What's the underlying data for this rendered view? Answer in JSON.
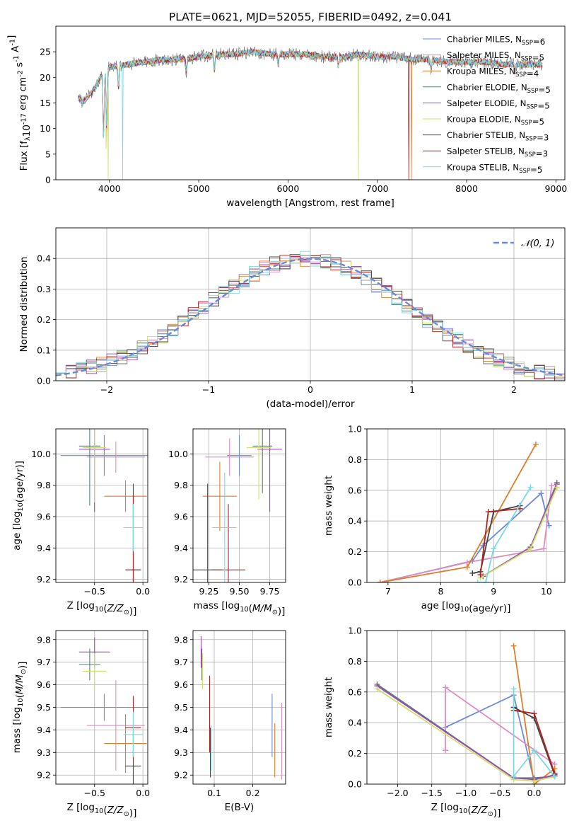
{
  "figure_title": "PLATE=0621, MJD=52055, FIBERID=0492, z=0.041",
  "colors": [
    "#6a8ad8",
    "#e08cc0",
    "#e07d2a",
    "#5b7f7a",
    "#9a4db3",
    "#cfe06a",
    "#4a4a4a",
    "#b22222",
    "#7fd8e0"
  ],
  "legend": [
    "Chabrier MILES, N$_{SSP}$=6",
    "Salpeter MILES, N$_{SSP}$=5",
    "Kroupa MILES, N$_{SSP}$=4",
    "Chabrier ELODIE, N$_{SSP}$=5",
    "Salpeter ELODIE, N$_{SSP}$=5",
    "Kroupa ELODIE, N$_{SSP}$=5",
    "Chabrier STELIB, N$_{SSP}$=3",
    "Salpeter STELIB, N$_{SSP}$=3",
    "Kroupa STELIB, N$_{SSP}$=5"
  ],
  "chart_data": [
    {
      "id": "spectrum",
      "type": "line",
      "xlabel": "wavelength [Angstrom, rest frame]",
      "ylabel": "Flux [f$_\\lambda$10$^{-17}$ erg cm$^{-2}$ s$^{-1}$ A$^{-1}$]",
      "xlim": [
        3400,
        9100
      ],
      "ylim": [
        0,
        30
      ],
      "xticks": [
        4000,
        5000,
        6000,
        7000,
        8000,
        9000
      ],
      "yticks": [
        0,
        5,
        10,
        15,
        20,
        25
      ],
      "grid": false,
      "legend_position": "upper right",
      "continuum": {
        "x": [
          3650,
          3700,
          3800,
          3900,
          4000,
          4200,
          4400,
          4600,
          4800,
          5000,
          5200,
          5400,
          5600,
          5800,
          6000,
          6200,
          6400,
          6600,
          6800,
          7000,
          7200,
          7400,
          7600,
          7800,
          8000,
          8200,
          8400,
          8600,
          8850
        ],
        "y": [
          16,
          15,
          17,
          20,
          22,
          22.5,
          23,
          23.5,
          23.5,
          24,
          24.5,
          24.5,
          25,
          24.5,
          24.5,
          24.5,
          24,
          24,
          24.5,
          24,
          24,
          23.5,
          23.5,
          23,
          23,
          23,
          22.5,
          22.5,
          22.5
        ]
      },
      "dips": [
        [
          3934,
          8
        ],
        [
          3969,
          10
        ],
        [
          4102,
          18
        ],
        [
          4861,
          21
        ],
        [
          5175,
          21
        ],
        [
          5890,
          22
        ],
        [
          6563,
          22
        ],
        [
          7600,
          21
        ],
        [
          8542,
          21
        ]
      ],
      "spikes": [
        {
          "x": 3985,
          "y": 0,
          "series": 5
        },
        {
          "x": 4150,
          "y": 0,
          "series": 8
        },
        {
          "x": 3960,
          "y": 6,
          "series": 5
        },
        {
          "x": 6790,
          "y": 0,
          "series": 5
        },
        {
          "x": 7380,
          "y": 0,
          "series": 2
        },
        {
          "x": 7350,
          "y": 0,
          "series": 7
        }
      ]
    },
    {
      "id": "residuals",
      "type": "line",
      "xlabel": "(data-model)/error",
      "ylabel": "Normed distribution",
      "xlim": [
        -2.5,
        2.5
      ],
      "ylim": [
        0,
        0.5
      ],
      "xticks": [
        -2,
        -1,
        0,
        1,
        2
      ],
      "yticks": [
        0.0,
        0.1,
        0.2,
        0.3,
        0.4
      ],
      "grid": true,
      "legend_position": "upper right",
      "gaussian_label": "$\\mathcal{N}(0,1)$",
      "bin_width": 0.1
    },
    {
      "id": "age_vs_Z",
      "type": "scatter",
      "xlabel": "Z [log$_{10}$($Z/Z_\\odot$)]",
      "ylabel": "age  [log$_{10}$($age/yr$)]",
      "xlim": [
        -0.9,
        0.05
      ],
      "ylim": [
        9.18,
        10.16
      ],
      "xticks": [
        -0.5,
        0.0
      ],
      "yticks": [
        9.2,
        9.4,
        9.6,
        9.8,
        10.0
      ],
      "grid": true,
      "points": [
        {
          "s": 0,
          "x": -0.4,
          "y": 9.99,
          "xe": 0.45,
          "ye": 0.13
        },
        {
          "s": 1,
          "x": -0.28,
          "y": 9.98,
          "xe": 0.3,
          "ye": 0.1
        },
        {
          "s": 2,
          "x": -0.18,
          "y": 9.73,
          "xe": 0.22,
          "ye": 0.1
        },
        {
          "s": 3,
          "x": -0.55,
          "y": 10.05,
          "xe": 0.11,
          "ye": 0.38
        },
        {
          "s": 4,
          "x": -0.5,
          "y": 10.03,
          "xe": 0.16,
          "ye": 0.4
        },
        {
          "s": 5,
          "x": -0.5,
          "y": 10.04,
          "xe": 0.12,
          "ye": 0.35
        },
        {
          "s": 6,
          "x": -0.1,
          "y": 9.26,
          "xe": 0.08,
          "ye": 0.55
        },
        {
          "s": 7,
          "x": -0.1,
          "y": 9.26,
          "xe": 0.08,
          "ye": 0.48
        },
        {
          "s": 8,
          "x": -0.1,
          "y": 9.53,
          "xe": 0.1,
          "ye": 0.15
        }
      ]
    },
    {
      "id": "age_vs_mass",
      "type": "scatter",
      "xlabel": "mass [log$_{10}$($M/M_\\odot$)]",
      "ylabel": "",
      "xlim": [
        9.12,
        9.88
      ],
      "ylim": [
        9.18,
        10.16
      ],
      "xticks": [
        9.25,
        9.5,
        9.75
      ],
      "yticks": [
        9.2,
        9.4,
        9.6,
        9.8,
        10.0
      ],
      "grid": true,
      "points": [
        {
          "s": 0,
          "x": 9.5,
          "y": 9.99,
          "xe": 0.1,
          "ye": 0.13
        },
        {
          "s": 1,
          "x": 9.42,
          "y": 9.98,
          "xe": 0.2,
          "ye": 0.12
        },
        {
          "s": 2,
          "x": 9.34,
          "y": 9.73,
          "xe": 0.14,
          "ye": 0.22
        },
        {
          "s": 3,
          "x": 9.69,
          "y": 10.05,
          "xe": 0.08,
          "ye": 0.3
        },
        {
          "s": 4,
          "x": 9.75,
          "y": 10.03,
          "xe": 0.1,
          "ye": 0.4
        },
        {
          "s": 5,
          "x": 9.66,
          "y": 10.04,
          "xe": 0.1,
          "ye": 0.33
        },
        {
          "s": 6,
          "x": 9.24,
          "y": 9.26,
          "xe": 0.12,
          "ye": 0.55
        },
        {
          "s": 7,
          "x": 9.41,
          "y": 9.26,
          "xe": 0.14,
          "ye": 0.42
        },
        {
          "s": 8,
          "x": 9.38,
          "y": 9.53,
          "xe": 0.1,
          "ye": 0.35
        }
      ]
    },
    {
      "id": "weight_vs_age",
      "type": "line",
      "xlabel": "age  [log$_{10}$($age/yr$)]",
      "ylabel": "mass weight",
      "xlim": [
        6.6,
        10.35
      ],
      "ylim": [
        0,
        1.0
      ],
      "xticks": [
        7,
        8,
        9,
        10
      ],
      "yticks": [
        0.0,
        0.2,
        0.4,
        0.6,
        0.8,
        1.0
      ],
      "grid": true,
      "series": [
        {
          "s": 0,
          "x": [
            6.85,
            8.6,
            8.8,
            9.9,
            10.05
          ],
          "y": [
            0.0,
            0.14,
            0.24,
            0.58,
            0.37
          ]
        },
        {
          "s": 1,
          "x": [
            6.85,
            8.5,
            9.95,
            10.1
          ],
          "y": [
            0.0,
            0.13,
            0.22,
            0.63
          ]
        },
        {
          "s": 2,
          "x": [
            6.85,
            8.5,
            9.8
          ],
          "y": [
            0.0,
            0.1,
            0.9
          ]
        },
        {
          "s": 3,
          "x": [
            8.8,
            9.7,
            10.2
          ],
          "y": [
            0.04,
            0.23,
            0.65
          ]
        },
        {
          "s": 4,
          "x": [
            8.8,
            9.7,
            10.2
          ],
          "y": [
            0.04,
            0.23,
            0.64
          ]
        },
        {
          "s": 5,
          "x": [
            8.75,
            9.7,
            10.2
          ],
          "y": [
            0.03,
            0.22,
            0.62
          ]
        },
        {
          "s": 6,
          "x": [
            8.6,
            8.75,
            9.0,
            9.5
          ],
          "y": [
            0.06,
            0.07,
            0.46,
            0.5
          ]
        },
        {
          "s": 7,
          "x": [
            8.75,
            8.9,
            9.5
          ],
          "y": [
            0.05,
            0.46,
            0.48
          ]
        },
        {
          "s": 8,
          "x": [
            8.7,
            8.85,
            9.0,
            9.7
          ],
          "y": [
            0.0,
            0.0,
            0.22,
            0.62
          ]
        }
      ]
    },
    {
      "id": "mass_vs_Z",
      "type": "scatter",
      "xlabel": "Z [log$_{10}$($Z/Z_\\odot$)]",
      "ylabel": "mass [log$_{10}$($M/M_\\odot$)]",
      "xlim": [
        -0.9,
        0.05
      ],
      "ylim": [
        9.16,
        9.84
      ],
      "xticks": [
        -0.5,
        0.0
      ],
      "yticks": [
        9.2,
        9.3,
        9.4,
        9.5,
        9.6,
        9.7,
        9.8
      ],
      "grid": true,
      "points": [
        {
          "s": 0,
          "x": -0.4,
          "y": 9.5,
          "xe": 0.45,
          "ye": 0.06
        },
        {
          "s": 1,
          "x": -0.28,
          "y": 9.42,
          "xe": 0.3,
          "ye": 0.2
        },
        {
          "s": 2,
          "x": -0.18,
          "y": 9.34,
          "xe": 0.22,
          "ye": 0.13
        },
        {
          "s": 3,
          "x": -0.55,
          "y": 9.69,
          "xe": 0.11,
          "ye": 0.07
        },
        {
          "s": 4,
          "x": -0.5,
          "y": 9.745,
          "xe": 0.16,
          "ye": 0.065
        },
        {
          "s": 5,
          "x": -0.5,
          "y": 9.66,
          "xe": 0.12,
          "ye": 0.08
        },
        {
          "s": 6,
          "x": -0.1,
          "y": 9.24,
          "xe": 0.08,
          "ye": 0.15
        },
        {
          "s": 7,
          "x": -0.1,
          "y": 9.41,
          "xe": 0.08,
          "ye": 0.14
        },
        {
          "s": 8,
          "x": -0.1,
          "y": 9.38,
          "xe": 0.1,
          "ye": 0.1
        }
      ]
    },
    {
      "id": "mass_vs_ebv",
      "type": "scatter",
      "xlabel": "E(B-V)",
      "ylabel": "",
      "xlim": [
        0.045,
        0.285
      ],
      "ylim": [
        9.16,
        9.84
      ],
      "xticks": [
        0.1,
        0.2
      ],
      "yticks": [
        9.2,
        9.3,
        9.4,
        9.5,
        9.6,
        9.7,
        9.8
      ],
      "grid": true,
      "points": [
        {
          "s": 0,
          "x": 0.25,
          "y": 9.42,
          "ye": 0.14
        },
        {
          "s": 1,
          "x": 0.275,
          "y": 9.35,
          "ye": 0.17
        },
        {
          "s": 2,
          "x": 0.257,
          "y": 9.31,
          "ye": 0.12
        },
        {
          "s": 3,
          "x": 0.068,
          "y": 9.69,
          "ye": 0.07
        },
        {
          "s": 4,
          "x": 0.066,
          "y": 9.745,
          "ye": 0.07
        },
        {
          "s": 5,
          "x": 0.07,
          "y": 9.66,
          "ye": 0.08
        },
        {
          "s": 6,
          "x": 0.09,
          "y": 9.3,
          "ye": 0.11
        },
        {
          "s": 7,
          "x": 0.088,
          "y": 9.47,
          "ye": 0.17
        },
        {
          "s": 8,
          "x": 0.092,
          "y": 9.32,
          "ye": 0.1
        }
      ]
    },
    {
      "id": "weight_vs_Z",
      "type": "line",
      "xlabel": "Z [log$_{10}$($Z/Z_\\odot$)]",
      "ylabel": "mass weight",
      "xlim": [
        -2.45,
        0.45
      ],
      "ylim": [
        0,
        1.0
      ],
      "xticks": [
        -2.0,
        -1.5,
        -1.0,
        -0.5,
        0.0
      ],
      "yticks": [
        0.0,
        0.2,
        0.4,
        0.6,
        0.8,
        1.0
      ],
      "grid": true,
      "series": [
        {
          "s": 0,
          "x": [
            -1.3,
            -0.3,
            0.0,
            0.3
          ],
          "y": [
            0.37,
            0.58,
            0.02,
            0.05
          ]
        },
        {
          "s": 1,
          "x": [
            -1.3,
            -1.3,
            0.3,
            0.3
          ],
          "y": [
            0.22,
            0.63,
            0.13,
            0.05
          ]
        },
        {
          "s": 2,
          "x": [
            -0.3,
            0.0,
            0.3
          ],
          "y": [
            0.9,
            0.0,
            0.1
          ]
        },
        {
          "s": 3,
          "x": [
            -2.3,
            -0.3,
            0.0,
            0.3
          ],
          "y": [
            0.65,
            0.04,
            0.04,
            0.05
          ]
        },
        {
          "s": 4,
          "x": [
            -2.3,
            -0.3,
            0.0,
            0.3
          ],
          "y": [
            0.64,
            0.04,
            0.03,
            0.06
          ]
        },
        {
          "s": 5,
          "x": [
            -2.3,
            -0.3,
            0.0,
            0.3
          ],
          "y": [
            0.62,
            0.03,
            0.02,
            0.05
          ]
        },
        {
          "s": 6,
          "x": [
            -0.3,
            0.0,
            0.3
          ],
          "y": [
            0.5,
            0.43,
            0.06
          ]
        },
        {
          "s": 7,
          "x": [
            -0.3,
            0.0,
            0.3
          ],
          "y": [
            0.48,
            0.46,
            0.07
          ]
        },
        {
          "s": 8,
          "x": [
            -0.3,
            -0.3,
            0.0,
            0.3
          ],
          "y": [
            0.62,
            0.05,
            0.22,
            0.05
          ]
        }
      ]
    }
  ]
}
